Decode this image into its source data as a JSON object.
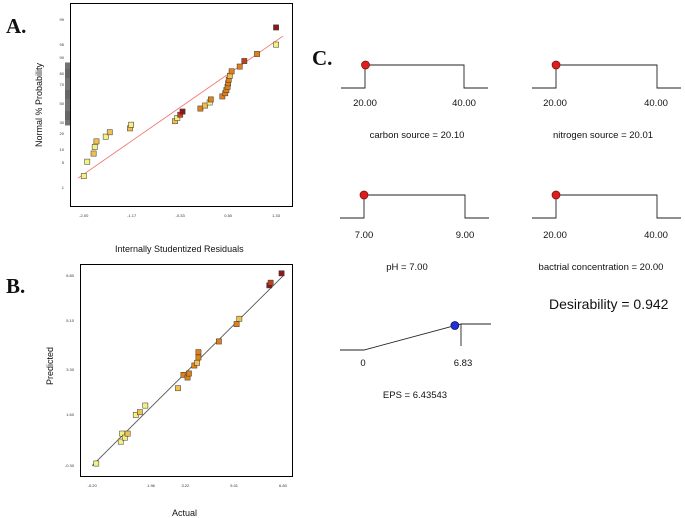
{
  "panels": {
    "a": "A.",
    "b": "B.",
    "c": "C."
  },
  "chart_data": [
    {
      "type": "scatter",
      "title": "",
      "xlabel": "Internally Studentized Residuals",
      "ylabel": "Normal % Probability",
      "x_ticks": [
        "-2.00",
        "-1.17",
        "-0.33",
        "0.50",
        "1.33"
      ],
      "y_ticks": [
        "1",
        "5",
        "10",
        "20",
        "30",
        "50",
        "70",
        "80",
        "90",
        "95",
        "99"
      ],
      "xlim": [
        -2.1,
        1.45
      ],
      "ylim": [
        0.5,
        99.5
      ],
      "fit_line": [
        [
          -2.1,
          2.0
        ],
        [
          1.45,
          97.0
        ]
      ],
      "points": [
        {
          "x": -2.0,
          "y": 2.3,
          "c": "#f4f180"
        },
        {
          "x": -1.94,
          "y": 5.5,
          "c": "#f4f180"
        },
        {
          "x": -1.83,
          "y": 8.5,
          "c": "#f2c050"
        },
        {
          "x": -1.81,
          "y": 11.7,
          "c": "#f4f180"
        },
        {
          "x": -1.78,
          "y": 15.0,
          "c": "#f2c050"
        },
        {
          "x": -1.62,
          "y": 18.3,
          "c": "#f4f180"
        },
        {
          "x": -1.55,
          "y": 21.7,
          "c": "#f2c050"
        },
        {
          "x": -1.2,
          "y": 25.0,
          "c": "#f2c050"
        },
        {
          "x": -1.18,
          "y": 28.3,
          "c": "#f4f180"
        },
        {
          "x": -0.42,
          "y": 31.7,
          "c": "#f2c050"
        },
        {
          "x": -0.38,
          "y": 35.0,
          "c": "#f4f180"
        },
        {
          "x": -0.33,
          "y": 38.3,
          "c": "#d93a2a"
        },
        {
          "x": -0.29,
          "y": 41.7,
          "c": "#8b1a1a"
        },
        {
          "x": 0.02,
          "y": 45.0,
          "c": "#e0801a"
        },
        {
          "x": 0.1,
          "y": 48.3,
          "c": "#f2c050"
        },
        {
          "x": 0.18,
          "y": 51.7,
          "c": "#f4f180"
        },
        {
          "x": 0.2,
          "y": 55.0,
          "c": "#e0801a"
        },
        {
          "x": 0.4,
          "y": 58.3,
          "c": "#e0801a"
        },
        {
          "x": 0.45,
          "y": 61.7,
          "c": "#e0801a"
        },
        {
          "x": 0.47,
          "y": 65.0,
          "c": "#e0801a"
        },
        {
          "x": 0.49,
          "y": 68.3,
          "c": "#e0801a"
        },
        {
          "x": 0.5,
          "y": 71.7,
          "c": "#e0801a"
        },
        {
          "x": 0.51,
          "y": 75.0,
          "c": "#e0801a"
        },
        {
          "x": 0.53,
          "y": 78.3,
          "c": "#f2c050"
        },
        {
          "x": 0.56,
          "y": 81.7,
          "c": "#e0801a"
        },
        {
          "x": 0.7,
          "y": 85.0,
          "c": "#e0801a"
        },
        {
          "x": 0.78,
          "y": 88.3,
          "c": "#c0401a"
        },
        {
          "x": 1.0,
          "y": 91.7,
          "c": "#e0801a"
        },
        {
          "x": 1.33,
          "y": 95.0,
          "c": "#f4f180"
        },
        {
          "x": 1.33,
          "y": 98.3,
          "c": "#8b1a1a"
        }
      ]
    },
    {
      "type": "scatter",
      "title": "",
      "xlabel": "Actual",
      "ylabel": "Predicted",
      "x_ticks": [
        "-0.20",
        "1.96",
        "3.22",
        "5.01",
        "6.80"
      ],
      "y_ticks": [
        "-0.30",
        "1.60",
        "3.30",
        "5.10",
        "6.80"
      ],
      "xlim": [
        -0.5,
        6.95
      ],
      "ylim": [
        -0.5,
        7.1
      ],
      "fit_line": [
        [
          -0.2,
          -0.3
        ],
        [
          6.8,
          6.8
        ]
      ],
      "points": [
        {
          "x": -0.05,
          "y": -0.22,
          "c": "#f4f180"
        },
        {
          "x": 0.85,
          "y": 0.6,
          "c": "#f4f180"
        },
        {
          "x": 0.9,
          "y": 0.9,
          "c": "#f4f180"
        },
        {
          "x": 1.0,
          "y": 0.75,
          "c": "#f4f180"
        },
        {
          "x": 1.1,
          "y": 0.9,
          "c": "#f2c050"
        },
        {
          "x": 1.4,
          "y": 1.6,
          "c": "#f4f180"
        },
        {
          "x": 1.55,
          "y": 1.7,
          "c": "#f2c050"
        },
        {
          "x": 1.75,
          "y": 1.95,
          "c": "#f4f180"
        },
        {
          "x": 2.95,
          "y": 2.6,
          "c": "#f2c050"
        },
        {
          "x": 3.15,
          "y": 3.1,
          "c": "#e0801a"
        },
        {
          "x": 3.3,
          "y": 3.0,
          "c": "#e0801a"
        },
        {
          "x": 3.35,
          "y": 3.15,
          "c": "#e0801a"
        },
        {
          "x": 3.55,
          "y": 3.45,
          "c": "#e0801a"
        },
        {
          "x": 3.65,
          "y": 3.55,
          "c": "#f2c050"
        },
        {
          "x": 3.7,
          "y": 3.75,
          "c": "#e0801a"
        },
        {
          "x": 3.7,
          "y": 3.95,
          "c": "#e0801a"
        },
        {
          "x": 4.45,
          "y": 4.35,
          "c": "#e0801a"
        },
        {
          "x": 5.1,
          "y": 5.0,
          "c": "#e0801a"
        },
        {
          "x": 5.2,
          "y": 5.2,
          "c": "#f2c050"
        },
        {
          "x": 6.3,
          "y": 6.45,
          "c": "#8b1a1a"
        },
        {
          "x": 6.35,
          "y": 6.55,
          "c": "#c0401a"
        },
        {
          "x": 6.75,
          "y": 6.9,
          "c": "#8b1a1a"
        }
      ]
    }
  ],
  "ramps": [
    {
      "min": "20.00",
      "max": "40.00",
      "name": "carbon source = 20.10",
      "dot": "#dd1e1e",
      "level": 0.005
    },
    {
      "min": "20.00",
      "max": "40.00",
      "name": "nitrogen source = 20.01",
      "dot": "#dd1e1e",
      "level": 0.0005
    },
    {
      "min": "7.00",
      "max": "9.00",
      "name": "pH = 7.00",
      "dot": "#dd1e1e",
      "level": 0.0
    },
    {
      "min": "20.00",
      "max": "40.00",
      "name": "bactrial concentration = 20.00",
      "dot": "#dd1e1e",
      "level": 0.0
    }
  ],
  "desirability": "Desirability = 0.942",
  "response": {
    "min": "0",
    "max": "6.83",
    "name": "EPS = 6.43543",
    "dot": "#1f2fd6",
    "level": 0.942
  }
}
